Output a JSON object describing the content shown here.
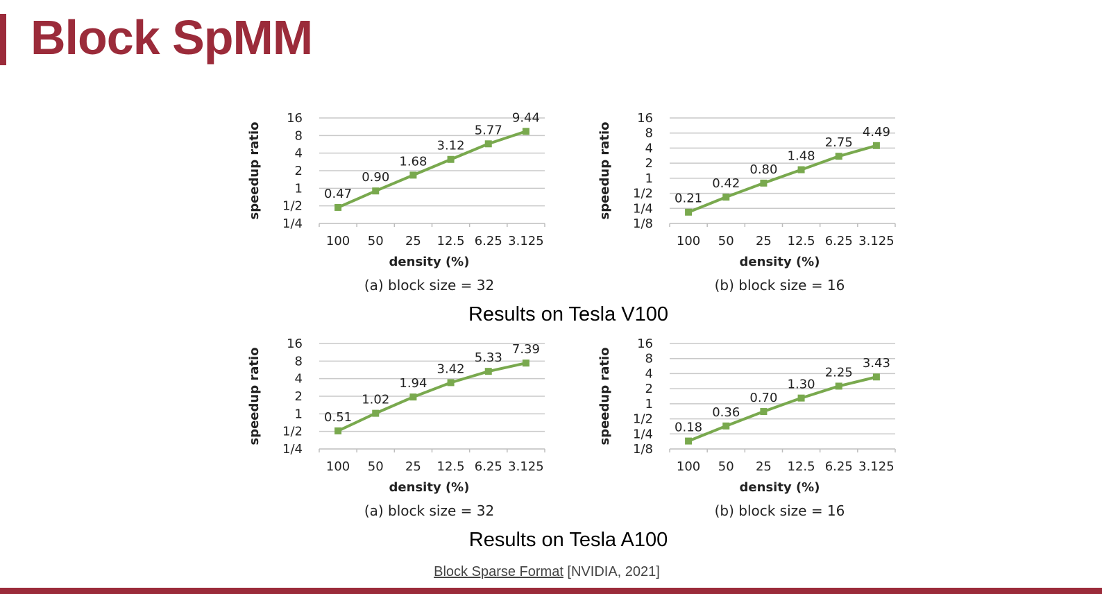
{
  "slide": {
    "title": "Block SpMM",
    "section_v100": "Results on Tesla V100",
    "section_a100": "Results on Tesla A100",
    "citation_link": "Block Sparse Format",
    "citation_rest": " [NVIDIA, 2021]"
  },
  "style": {
    "accent": "#9b2b3a",
    "series_color": "#79a94e",
    "grid_color": "#c9c9c9"
  },
  "chart_data": [
    {
      "type": "line",
      "scale": "log2",
      "categories": [
        "100",
        "50",
        "25",
        "12.5",
        "6.25",
        "3.125"
      ],
      "yticks": [
        {
          "v": 0.25,
          "t": "1/4"
        },
        {
          "v": 0.5,
          "t": "1/2"
        },
        {
          "v": 1,
          "t": "1"
        },
        {
          "v": 2,
          "t": "2"
        },
        {
          "v": 4,
          "t": "4"
        },
        {
          "v": 8,
          "t": "8"
        },
        {
          "v": 16,
          "t": "16"
        }
      ],
      "ylim": [
        0.25,
        16
      ],
      "values": [
        0.47,
        0.9,
        1.68,
        3.12,
        5.77,
        9.44
      ],
      "labels": [
        "0.47",
        "0.90",
        "1.68",
        "3.12",
        "5.77",
        "9.44"
      ],
      "xlabel": "density (%)",
      "ylabel": "speedup ratio",
      "caption": "(a) block size = 32",
      "grid": true
    },
    {
      "type": "line",
      "scale": "log2",
      "categories": [
        "100",
        "50",
        "25",
        "12.5",
        "6.25",
        "3.125"
      ],
      "yticks": [
        {
          "v": 0.125,
          "t": "1/8"
        },
        {
          "v": 0.25,
          "t": "1/4"
        },
        {
          "v": 0.5,
          "t": "1/2"
        },
        {
          "v": 1,
          "t": "1"
        },
        {
          "v": 2,
          "t": "2"
        },
        {
          "v": 4,
          "t": "4"
        },
        {
          "v": 8,
          "t": "8"
        },
        {
          "v": 16,
          "t": "16"
        }
      ],
      "ylim": [
        0.125,
        16
      ],
      "values": [
        0.21,
        0.42,
        0.8,
        1.48,
        2.75,
        4.49
      ],
      "labels": [
        "0.21",
        "0.42",
        "0.80",
        "1.48",
        "2.75",
        "4.49"
      ],
      "xlabel": "density (%)",
      "ylabel": "speedup ratio",
      "caption": "(b) block size = 16",
      "grid": true
    },
    {
      "type": "line",
      "scale": "log2",
      "categories": [
        "100",
        "50",
        "25",
        "12.5",
        "6.25",
        "3.125"
      ],
      "yticks": [
        {
          "v": 0.25,
          "t": "1/4"
        },
        {
          "v": 0.5,
          "t": "1/2"
        },
        {
          "v": 1,
          "t": "1"
        },
        {
          "v": 2,
          "t": "2"
        },
        {
          "v": 4,
          "t": "4"
        },
        {
          "v": 8,
          "t": "8"
        },
        {
          "v": 16,
          "t": "16"
        }
      ],
      "ylim": [
        0.25,
        16
      ],
      "values": [
        0.51,
        1.02,
        1.94,
        3.42,
        5.33,
        7.39
      ],
      "labels": [
        "0.51",
        "1.02",
        "1.94",
        "3.42",
        "5.33",
        "7.39"
      ],
      "xlabel": "density (%)",
      "ylabel": "speedup ratio",
      "caption": "(a) block size = 32",
      "grid": true
    },
    {
      "type": "line",
      "scale": "log2",
      "categories": [
        "100",
        "50",
        "25",
        "12.5",
        "6.25",
        "3.125"
      ],
      "yticks": [
        {
          "v": 0.125,
          "t": "1/8"
        },
        {
          "v": 0.25,
          "t": "1/4"
        },
        {
          "v": 0.5,
          "t": "1/2"
        },
        {
          "v": 1,
          "t": "1"
        },
        {
          "v": 2,
          "t": "2"
        },
        {
          "v": 4,
          "t": "4"
        },
        {
          "v": 8,
          "t": "8"
        },
        {
          "v": 16,
          "t": "16"
        }
      ],
      "ylim": [
        0.125,
        16
      ],
      "values": [
        0.18,
        0.36,
        0.7,
        1.3,
        2.25,
        3.43
      ],
      "labels": [
        "0.18",
        "0.36",
        "0.70",
        "1.30",
        "2.25",
        "3.43"
      ],
      "xlabel": "density (%)",
      "ylabel": "speedup ratio",
      "caption": "(b) block size = 16",
      "grid": true
    }
  ]
}
